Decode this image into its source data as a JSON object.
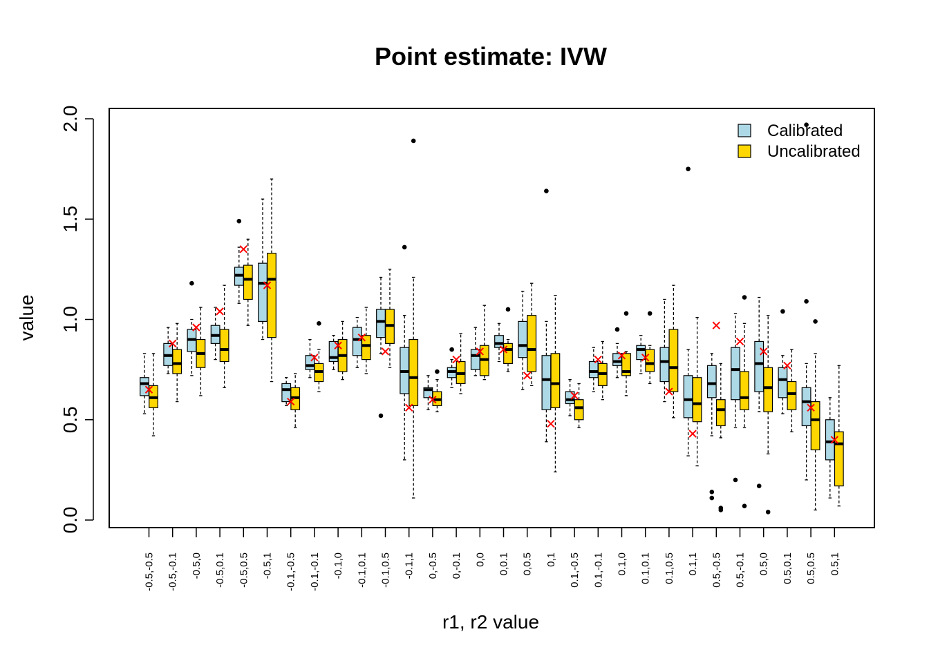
{
  "chart_data": {
    "type": "box",
    "title": "Point estimate: IVW",
    "xlabel": "r1, r2 value",
    "ylabel": "value",
    "ylim": [
      0,
      2
    ],
    "yticks": [
      "0.0",
      "0.5",
      "1.0",
      "1.5",
      "2.0"
    ],
    "legend": {
      "position": "top-right"
    },
    "categories": [
      "-0.5,-0.5",
      "-0.5,-0.1",
      "-0.5,0",
      "-0.5,0.1",
      "-0.5,0.5",
      "-0.5,1",
      "-0.1,-0.5",
      "-0.1,-0.1",
      "-0.1,0",
      "-0.1,0.1",
      "-0.1,0.5",
      "-0.1,1",
      "0,-0.5",
      "0,-0.1",
      "0,0",
      "0,0.1",
      "0,0.5",
      "0,1",
      "0.1,-0.5",
      "0.1,-0.1",
      "0.1,0",
      "0.1,0.1",
      "0.1,0.5",
      "0.1,1",
      "0.5,-0.5",
      "0.5,-0.1",
      "0.5,0",
      "0.5,0.1",
      "0.5,0.5",
      "0.5,1"
    ],
    "series": [
      {
        "name": "Calibrated",
        "color": "#add8e6",
        "boxes": [
          {
            "wl": 0.53,
            "q1": 0.62,
            "med": 0.68,
            "q3": 0.71,
            "wh": 0.83,
            "out": []
          },
          {
            "wl": 0.73,
            "q1": 0.77,
            "med": 0.82,
            "q3": 0.88,
            "wh": 0.96,
            "out": []
          },
          {
            "wl": 0.72,
            "q1": 0.84,
            "med": 0.9,
            "q3": 0.95,
            "wh": 1.0,
            "out": [
              1.18
            ]
          },
          {
            "wl": 0.8,
            "q1": 0.88,
            "med": 0.92,
            "q3": 0.97,
            "wh": 1.06,
            "out": []
          },
          {
            "wl": 1.08,
            "q1": 1.17,
            "med": 1.22,
            "q3": 1.26,
            "wh": 1.36,
            "out": [
              1.49
            ]
          },
          {
            "wl": 0.9,
            "q1": 0.99,
            "med": 1.18,
            "q3": 1.28,
            "wh": 1.6,
            "out": []
          },
          {
            "wl": 0.57,
            "q1": 0.59,
            "med": 0.65,
            "q3": 0.68,
            "wh": 0.71,
            "out": []
          },
          {
            "wl": 0.71,
            "q1": 0.75,
            "med": 0.77,
            "q3": 0.82,
            "wh": 0.9,
            "out": []
          },
          {
            "wl": 0.75,
            "q1": 0.79,
            "med": 0.81,
            "q3": 0.89,
            "wh": 0.92,
            "out": []
          },
          {
            "wl": 0.76,
            "q1": 0.82,
            "med": 0.9,
            "q3": 0.96,
            "wh": 1.01,
            "out": []
          },
          {
            "wl": 0.83,
            "q1": 0.91,
            "med": 0.99,
            "q3": 1.05,
            "wh": 1.21,
            "out": [
              0.52
            ]
          },
          {
            "wl": 0.3,
            "q1": 0.63,
            "med": 0.74,
            "q3": 0.86,
            "wh": 1.02,
            "out": [
              1.36
            ]
          },
          {
            "wl": 0.55,
            "q1": 0.61,
            "med": 0.65,
            "q3": 0.66,
            "wh": 0.72,
            "out": []
          },
          {
            "wl": 0.66,
            "q1": 0.71,
            "med": 0.74,
            "q3": 0.76,
            "wh": 0.8,
            "out": [
              0.85
            ]
          },
          {
            "wl": 0.72,
            "q1": 0.75,
            "med": 0.82,
            "q3": 0.85,
            "wh": 0.96,
            "out": []
          },
          {
            "wl": 0.79,
            "q1": 0.86,
            "med": 0.88,
            "q3": 0.92,
            "wh": 0.98,
            "out": []
          },
          {
            "wl": 0.65,
            "q1": 0.81,
            "med": 0.87,
            "q3": 0.99,
            "wh": 1.14,
            "out": []
          },
          {
            "wl": 0.39,
            "q1": 0.55,
            "med": 0.7,
            "q3": 0.82,
            "wh": 0.99,
            "out": [
              1.64
            ]
          },
          {
            "wl": 0.52,
            "q1": 0.58,
            "med": 0.6,
            "q3": 0.64,
            "wh": 0.7,
            "out": []
          },
          {
            "wl": 0.64,
            "q1": 0.71,
            "med": 0.74,
            "q3": 0.79,
            "wh": 0.86,
            "out": []
          },
          {
            "wl": 0.71,
            "q1": 0.77,
            "med": 0.79,
            "q3": 0.83,
            "wh": 0.88,
            "out": [
              0.95
            ]
          },
          {
            "wl": 0.73,
            "q1": 0.8,
            "med": 0.85,
            "q3": 0.87,
            "wh": 0.92,
            "out": []
          },
          {
            "wl": 0.59,
            "q1": 0.69,
            "med": 0.79,
            "q3": 0.86,
            "wh": 1.1,
            "out": []
          },
          {
            "wl": 0.32,
            "q1": 0.51,
            "med": 0.6,
            "q3": 0.72,
            "wh": 0.85,
            "out": [
              1.75
            ]
          },
          {
            "wl": 0.42,
            "q1": 0.61,
            "med": 0.68,
            "q3": 0.77,
            "wh": 0.83,
            "out": [
              0.14,
              0.11
            ]
          },
          {
            "wl": 0.46,
            "q1": 0.6,
            "med": 0.75,
            "q3": 0.86,
            "wh": 1.03,
            "out": [
              0.2
            ]
          },
          {
            "wl": 0.54,
            "q1": 0.64,
            "med": 0.78,
            "q3": 0.89,
            "wh": 1.11,
            "out": [
              0.17
            ]
          },
          {
            "wl": 0.53,
            "q1": 0.61,
            "med": 0.7,
            "q3": 0.76,
            "wh": 0.82,
            "out": [
              1.04
            ]
          },
          {
            "wl": 0.2,
            "q1": 0.47,
            "med": 0.59,
            "q3": 0.66,
            "wh": 0.78,
            "out": [
              1.09,
              1.97
            ]
          },
          {
            "wl": 0.11,
            "q1": 0.3,
            "med": 0.39,
            "q3": 0.5,
            "wh": 0.61,
            "out": []
          }
        ]
      },
      {
        "name": "Uncalibrated",
        "color": "#ffd700",
        "boxes": [
          {
            "wl": 0.42,
            "q1": 0.56,
            "med": 0.61,
            "q3": 0.67,
            "wh": 0.83,
            "out": []
          },
          {
            "wl": 0.59,
            "q1": 0.73,
            "med": 0.78,
            "q3": 0.85,
            "wh": 0.98,
            "out": []
          },
          {
            "wl": 0.62,
            "q1": 0.76,
            "med": 0.83,
            "q3": 0.9,
            "wh": 1.06,
            "out": []
          },
          {
            "wl": 0.66,
            "q1": 0.79,
            "med": 0.85,
            "q3": 0.95,
            "wh": 1.17,
            "out": []
          },
          {
            "wl": 0.97,
            "q1": 1.1,
            "med": 1.2,
            "q3": 1.27,
            "wh": 1.4,
            "out": []
          },
          {
            "wl": 0.69,
            "q1": 0.91,
            "med": 1.2,
            "q3": 1.33,
            "wh": 1.7,
            "out": []
          },
          {
            "wl": 0.46,
            "q1": 0.55,
            "med": 0.61,
            "q3": 0.66,
            "wh": 0.73,
            "out": []
          },
          {
            "wl": 0.64,
            "q1": 0.69,
            "med": 0.74,
            "q3": 0.78,
            "wh": 0.85,
            "out": [
              0.98
            ]
          },
          {
            "wl": 0.7,
            "q1": 0.74,
            "med": 0.82,
            "q3": 0.9,
            "wh": 0.99,
            "out": []
          },
          {
            "wl": 0.73,
            "q1": 0.8,
            "med": 0.87,
            "q3": 0.92,
            "wh": 1.06,
            "out": []
          },
          {
            "wl": 0.76,
            "q1": 0.88,
            "med": 0.97,
            "q3": 1.05,
            "wh": 1.25,
            "out": []
          },
          {
            "wl": 0.11,
            "q1": 0.57,
            "med": 0.71,
            "q3": 0.9,
            "wh": 1.21,
            "out": [
              1.89
            ]
          },
          {
            "wl": 0.54,
            "q1": 0.57,
            "med": 0.6,
            "q3": 0.64,
            "wh": 0.7,
            "out": [
              0.74
            ]
          },
          {
            "wl": 0.63,
            "q1": 0.68,
            "med": 0.73,
            "q3": 0.79,
            "wh": 0.93,
            "out": []
          },
          {
            "wl": 0.7,
            "q1": 0.72,
            "med": 0.8,
            "q3": 0.87,
            "wh": 1.07,
            "out": []
          },
          {
            "wl": 0.74,
            "q1": 0.78,
            "med": 0.85,
            "q3": 0.88,
            "wh": 0.9,
            "out": [
              1.05
            ]
          },
          {
            "wl": 0.67,
            "q1": 0.74,
            "med": 0.85,
            "q3": 1.02,
            "wh": 1.18,
            "out": []
          },
          {
            "wl": 0.24,
            "q1": 0.56,
            "med": 0.68,
            "q3": 0.83,
            "wh": 1.12,
            "out": []
          },
          {
            "wl": 0.46,
            "q1": 0.5,
            "med": 0.56,
            "q3": 0.6,
            "wh": 0.68,
            "out": []
          },
          {
            "wl": 0.6,
            "q1": 0.67,
            "med": 0.73,
            "q3": 0.78,
            "wh": 0.89,
            "out": []
          },
          {
            "wl": 0.62,
            "q1": 0.72,
            "med": 0.74,
            "q3": 0.83,
            "wh": 0.84,
            "out": [
              1.03
            ]
          },
          {
            "wl": 0.68,
            "q1": 0.74,
            "med": 0.78,
            "q3": 0.85,
            "wh": 0.87,
            "out": [
              1.03
            ]
          },
          {
            "wl": 0.51,
            "q1": 0.64,
            "med": 0.76,
            "q3": 0.95,
            "wh": 1.17,
            "out": []
          },
          {
            "wl": 0.27,
            "q1": 0.49,
            "med": 0.58,
            "q3": 0.71,
            "wh": 1.01,
            "out": []
          },
          {
            "wl": 0.41,
            "q1": 0.47,
            "med": 0.55,
            "q3": 0.6,
            "wh": 0.78,
            "out": [
              0.06,
              0.05
            ]
          },
          {
            "wl": 0.46,
            "q1": 0.55,
            "med": 0.61,
            "q3": 0.74,
            "wh": 0.98,
            "out": [
              0.07,
              1.11
            ]
          },
          {
            "wl": 0.33,
            "q1": 0.54,
            "med": 0.66,
            "q3": 0.76,
            "wh": 1.02,
            "out": [
              0.04
            ]
          },
          {
            "wl": 0.44,
            "q1": 0.55,
            "med": 0.63,
            "q3": 0.69,
            "wh": 0.85,
            "out": []
          },
          {
            "wl": 0.05,
            "q1": 0.35,
            "med": 0.5,
            "q3": 0.59,
            "wh": 0.83,
            "out": [
              0.99
            ]
          },
          {
            "wl": 0.07,
            "q1": 0.17,
            "med": 0.38,
            "q3": 0.44,
            "wh": 0.77,
            "out": []
          }
        ]
      }
    ],
    "truth_markers": {
      "color": "#ff0000",
      "values": [
        0.65,
        0.88,
        0.96,
        1.04,
        1.35,
        1.17,
        0.59,
        0.81,
        0.87,
        0.91,
        0.84,
        0.56,
        0.6,
        0.8,
        0.84,
        0.85,
        0.72,
        0.48,
        0.62,
        0.8,
        0.82,
        0.81,
        0.64,
        0.43,
        0.97,
        0.89,
        0.84,
        0.77,
        0.56,
        0.4
      ]
    }
  }
}
